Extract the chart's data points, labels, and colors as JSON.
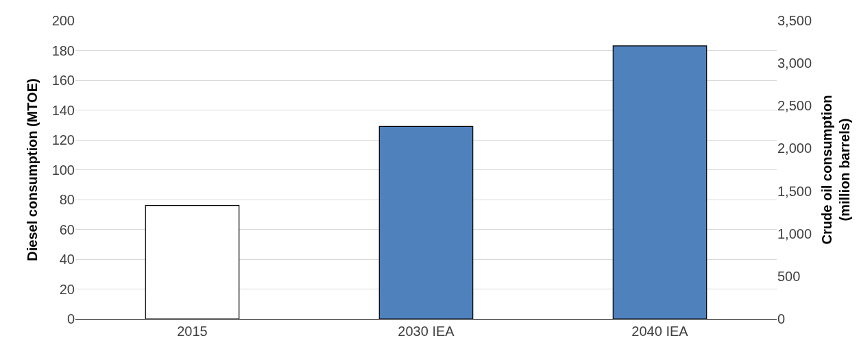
{
  "chart_data": {
    "type": "bar",
    "categories": [
      "2015",
      "2030 IEA",
      "2040 IEA"
    ],
    "values": [
      76,
      129,
      183
    ],
    "colors": [
      "#ffffff",
      "#4f81bd",
      "#4f81bd"
    ],
    "ylabel": "Diesel consumption (MTOE)",
    "y2label": "Crude oil consumption\n(million barrels)",
    "ylim": [
      0,
      200
    ],
    "yticks": [
      0,
      20,
      40,
      60,
      80,
      100,
      120,
      140,
      160,
      180,
      200
    ],
    "y2lim": [
      0,
      3500
    ],
    "y2ticks": [
      0,
      500,
      {
        "value": 1000,
        "label": "1,000"
      },
      {
        "value": 1500,
        "label": "1,500"
      },
      {
        "value": 2000,
        "label": "2,000"
      },
      {
        "value": 2500,
        "label": "2,500"
      },
      {
        "value": 3000,
        "label": "3,000"
      },
      {
        "value": 3500,
        "label": "3,500"
      }
    ],
    "grid": "y"
  }
}
